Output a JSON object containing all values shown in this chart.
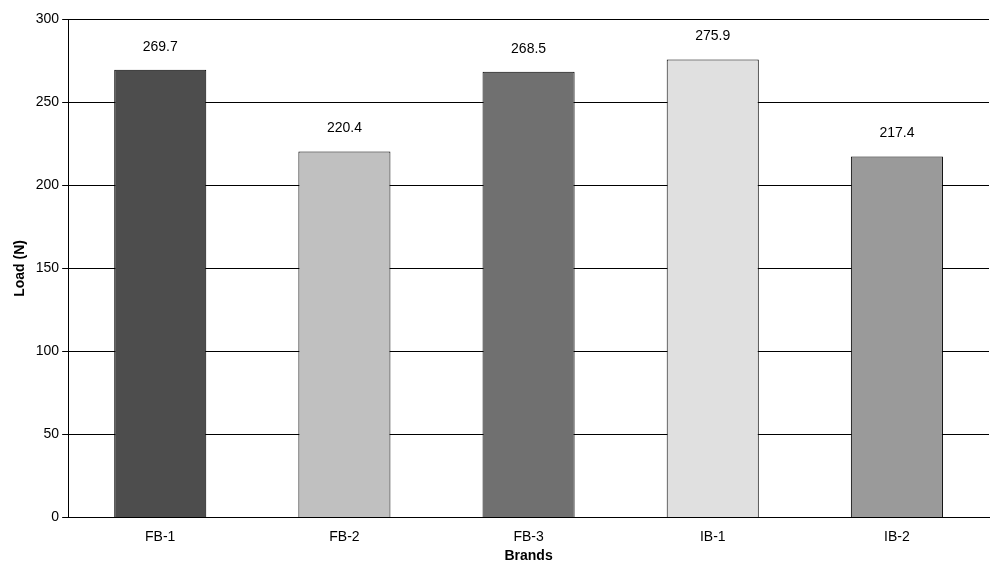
{
  "chart_data": {
    "type": "bar",
    "xlabel": "Brands",
    "ylabel": "Load (N)",
    "categories": [
      "FB-1",
      "FB-2",
      "FB-3",
      "IB-1",
      "IB-2"
    ],
    "values": [
      269.7,
      220.4,
      268.5,
      275.9,
      217.4
    ],
    "colors": [
      "#4d4d4d",
      "#c0c0c0",
      "#707070",
      "#e0e0e0",
      "#9a9a9a"
    ],
    "ylim": [
      0,
      300
    ],
    "yticks": [
      0,
      50,
      100,
      150,
      200,
      250,
      300
    ],
    "grid": "y",
    "data_labels": true
  }
}
